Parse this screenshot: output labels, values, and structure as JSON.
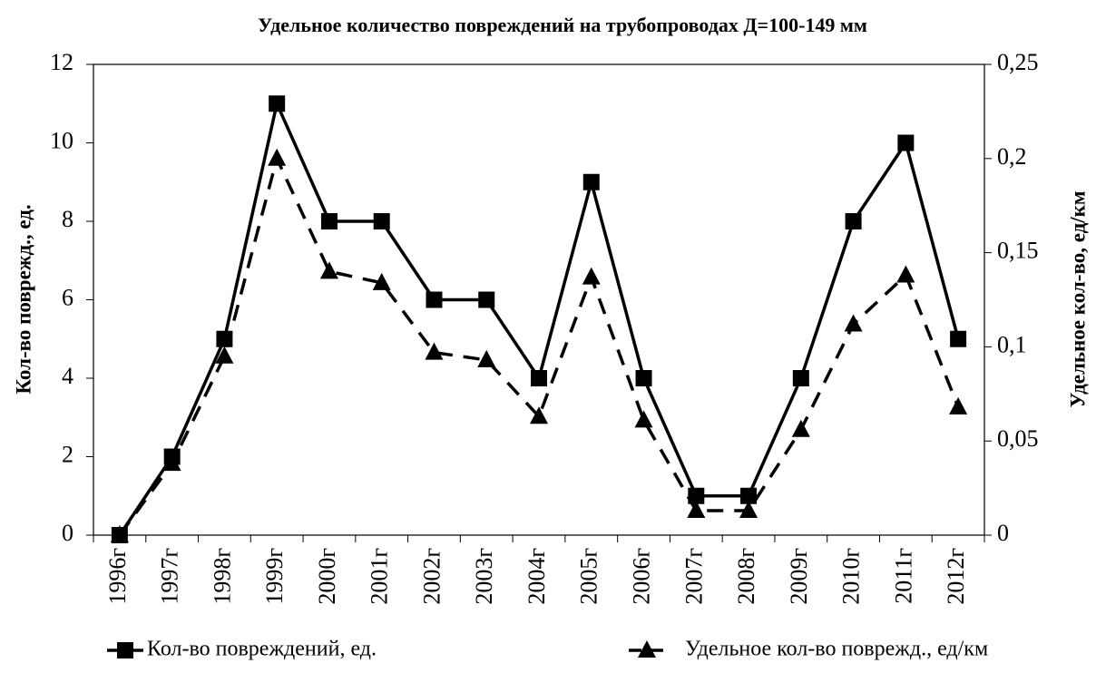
{
  "chart_data": {
    "type": "line",
    "title": "Удельное количество повреждений на трубопроводах Д=100-149 мм",
    "y_label": "Кол-во поврежд., ед.",
    "y2_label": "Удельное кол-во, ед/км",
    "categories": [
      "1996г",
      "1997г",
      "1998г",
      "1999г",
      "2000г",
      "2001г",
      "2002г",
      "2003г",
      "2004г",
      "2005г",
      "2006г",
      "2007г",
      "2008г",
      "2009г",
      "2010г",
      "2011г",
      "2012г"
    ],
    "series": [
      {
        "name": "Кол-во повреждений, ед.",
        "color": "#000000",
        "style": "solid",
        "marker": "square",
        "values": [
          0,
          2,
          5,
          11,
          8,
          8,
          6,
          6,
          4,
          9,
          4,
          1,
          1,
          4,
          8,
          10,
          5
        ]
      },
      {
        "name": "Удельное кол-во поврежд., ед/км",
        "color": "#000000",
        "style": "dashed",
        "marker": "triangle",
        "axis": "y2",
        "values": [
          0,
          0.038,
          0.095,
          0.2,
          0.14,
          0.134,
          0.097,
          0.093,
          0.063,
          0.137,
          0.061,
          0.013,
          0.013,
          0.056,
          0.112,
          0.138,
          0.068
        ]
      }
    ],
    "ylim": [
      0,
      12
    ],
    "yticks": [
      0,
      2,
      4,
      6,
      8,
      10,
      12
    ],
    "y2lim": [
      0,
      0.25
    ],
    "y2ticks": [
      0,
      {
        "value": 0.05,
        "label": "0,05"
      },
      {
        "value": 0.1,
        "label": "0,1"
      },
      {
        "value": 0.15,
        "label": "0,15"
      },
      {
        "value": 0.2,
        "label": "0,2"
      },
      {
        "value": 0.25,
        "label": "0,25"
      }
    ],
    "grid": false,
    "legend": "bottom"
  }
}
